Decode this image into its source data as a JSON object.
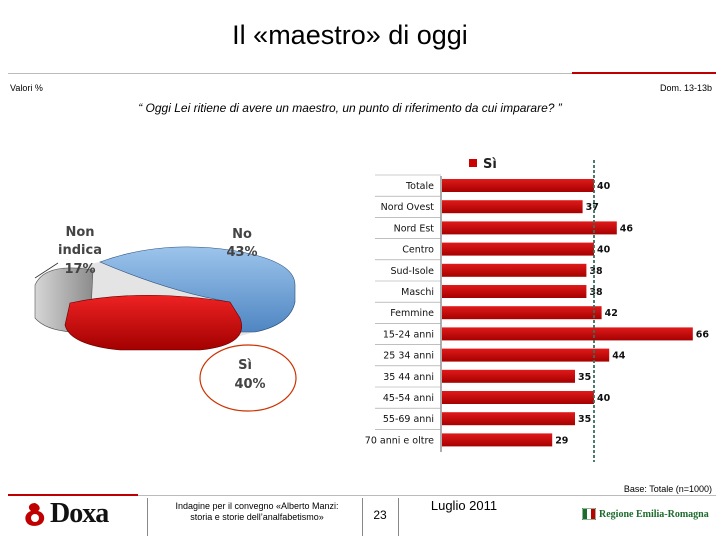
{
  "header": {
    "title": "Il «maestro» di oggi",
    "valori": "Valori %",
    "ref": "Dom. 13-13b",
    "question": "“ Oggi Lei ritiene di avere un maestro, un punto di riferimento da cui imparare? ”"
  },
  "chart_data": [
    {
      "type": "pie",
      "title": "",
      "slices": [
        {
          "label_line1": "No",
          "label_line2": "",
          "value": 43,
          "value_label": "43%",
          "color": "#6fa3d8"
        },
        {
          "label_line1": "Sì",
          "label_line2": "",
          "value": 40,
          "value_label": "40%",
          "color": "#cc0000"
        },
        {
          "label_line1": "Non",
          "label_line2": "indica",
          "value": 17,
          "value_label": "17%",
          "color": "#a8a8a8"
        }
      ],
      "highlight": "Sì"
    },
    {
      "type": "bar",
      "orientation": "horizontal",
      "legend": "Sì",
      "categories": [
        "Totale",
        "Nord Ovest",
        "Nord Est",
        "Centro",
        "Sud-Isole",
        "Maschi",
        "Femmine",
        "15-24 anni",
        "25 34 anni",
        "35 44 anni",
        "45-54 anni",
        "55-69 anni",
        "70 anni e oltre"
      ],
      "values": [
        40,
        37,
        46,
        40,
        38,
        38,
        42,
        66,
        44,
        35,
        40,
        35,
        29
      ],
      "reference_line": 40,
      "bar_color": "#cc0000"
    }
  ],
  "footer": {
    "base": "Base: Totale (n=1000)",
    "brand": "Doxa",
    "indagine_line1": "Indagine per il convegno «Alberto Manzi:",
    "indagine_line2": "storia e storie dell’analfabetismo»",
    "page": "23",
    "date": "Luglio 2011",
    "region": "Regione Emilia-Romagna"
  },
  "colors": {
    "accent": "#c00000",
    "pie_no": "#6fa3d8",
    "pie_si": "#cc0000",
    "pie_ni": "#a8a8a8",
    "reference": "#3a6e5a"
  }
}
